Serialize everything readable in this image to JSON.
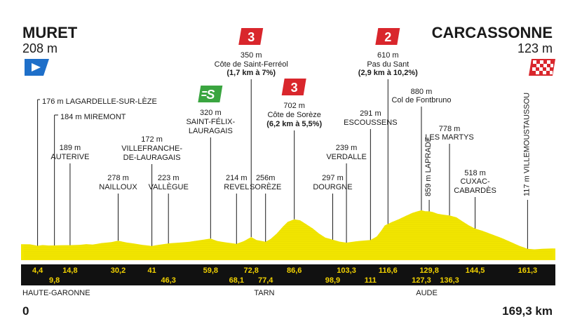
{
  "start": {
    "name": "MURET",
    "alt": "208 m",
    "km_label": "0"
  },
  "finish": {
    "name": "CARCASSONNE",
    "alt": "123 m",
    "km_label": "169,3 km"
  },
  "total_km": 169.3,
  "regions": [
    {
      "name": "HAUTE-GARONNE",
      "km": 0
    },
    {
      "name": "TARN",
      "km": 77
    },
    {
      "name": "AUDE",
      "km": 129
    }
  ],
  "colors": {
    "profile": "#f2e600",
    "axis_bar": "#111111",
    "km_text": "#f2d200",
    "climb_red": "#d9262c",
    "sprint_green": "#3aa540",
    "start_blue": "#1e6fc9"
  },
  "markers": [
    {
      "km": 4.4,
      "km_label": "4,4",
      "row": "top",
      "label": [
        "176 m LAGARDELLE-SUR-LÈZE"
      ]
    },
    {
      "km": 9.8,
      "km_label": "9,8",
      "row": "bottom",
      "label": [
        "184 m MIREMONT"
      ]
    },
    {
      "km": 14.8,
      "km_label": "14,8",
      "row": "top",
      "label": [
        "189 m",
        "AUTERIVE"
      ]
    },
    {
      "km": 30.2,
      "km_label": "30,2",
      "row": "top",
      "label": [
        "278 m",
        "NAILLOUX"
      ]
    },
    {
      "km": 41,
      "km_label": "41",
      "row": "top",
      "label": [
        "172 m",
        "VILLEFRANCHE-",
        "DE-LAURAGAIS"
      ]
    },
    {
      "km": 46.3,
      "km_label": "46,3",
      "row": "bottom",
      "label": [
        "223 m",
        "VALLÈGUE"
      ]
    },
    {
      "km": 59.8,
      "km_label": "59,8",
      "row": "top",
      "label": [
        "320 m",
        "SAINT-FÉLIX-",
        "LAURAGAIS"
      ],
      "icon": "sprint"
    },
    {
      "km": 68.1,
      "km_label": "68,1",
      "row": "bottom",
      "label": [
        "214 m",
        "REVEL"
      ]
    },
    {
      "km": 72.8,
      "km_label": "72,8",
      "row": "top",
      "label": [
        "350 m",
        "Côte de Saint-Ferréol",
        "(1,7 km à 7%)"
      ],
      "icon": "cat3"
    },
    {
      "km": 77.4,
      "km_label": "77,4",
      "row": "bottom",
      "label": [
        "256m",
        "SORÈZE"
      ]
    },
    {
      "km": 86.6,
      "km_label": "86,6",
      "row": "top",
      "label": [
        "702 m",
        "Côte de Sorèze",
        "(6,2 km à 5,5%)"
      ],
      "icon": "cat3"
    },
    {
      "km": 98.9,
      "km_label": "98,9",
      "row": "bottom",
      "label": [
        "297 m",
        "DOURGNE"
      ]
    },
    {
      "km": 103.3,
      "km_label": "103,3",
      "row": "top",
      "label": [
        "239 m",
        "VERDALLE"
      ]
    },
    {
      "km": 111,
      "km_label": "111",
      "row": "bottom",
      "label": [
        "291 m",
        "ESCOUSSENS"
      ]
    },
    {
      "km": 116.6,
      "km_label": "116,6",
      "row": "top",
      "label": [
        "610 m",
        "Pas du Sant",
        "(2,9 km à 10,2%)"
      ],
      "icon": "cat2"
    },
    {
      "km": 127.3,
      "km_label": "127,3",
      "row": "bottom",
      "label": [
        "880 m",
        "Col de Fontbruno"
      ]
    },
    {
      "km": 129.8,
      "km_label": "129,8",
      "row": "top",
      "label": [
        "859 m LAPRADE"
      ],
      "vertical": true
    },
    {
      "km": 136.3,
      "km_label": "136,3",
      "row": "bottom",
      "label": [
        "778 m",
        "LES MARTYS"
      ]
    },
    {
      "km": 144.5,
      "km_label": "144,5",
      "row": "top",
      "label": [
        "518 m",
        "CUXAC-",
        "CABARDÈS"
      ]
    },
    {
      "km": 161.3,
      "km_label": "161,3",
      "row": "top",
      "label": [
        "117 m VILLEMOUSTAUSSOU"
      ],
      "vertical": true
    }
  ],
  "icons": {
    "cat3": "3",
    "cat2": "2",
    "sprint": "S"
  },
  "profile": [
    [
      0,
      208
    ],
    [
      2,
      205
    ],
    [
      4.4,
      176
    ],
    [
      6,
      190
    ],
    [
      8,
      182
    ],
    [
      9.8,
      184
    ],
    [
      12,
      186
    ],
    [
      14.8,
      189
    ],
    [
      18,
      196
    ],
    [
      20,
      210
    ],
    [
      22,
      200
    ],
    [
      25,
      230
    ],
    [
      28,
      250
    ],
    [
      30.2,
      278
    ],
    [
      33,
      240
    ],
    [
      36,
      215
    ],
    [
      38,
      195
    ],
    [
      41,
      172
    ],
    [
      43,
      195
    ],
    [
      46.3,
      223
    ],
    [
      50,
      240
    ],
    [
      53,
      255
    ],
    [
      56,
      285
    ],
    [
      59.8,
      320
    ],
    [
      62,
      270
    ],
    [
      65,
      240
    ],
    [
      68.1,
      214
    ],
    [
      70.5,
      270
    ],
    [
      72.8,
      350
    ],
    [
      74.5,
      290
    ],
    [
      77.4,
      256
    ],
    [
      79,
      310
    ],
    [
      81,
      420
    ],
    [
      83,
      560
    ],
    [
      84.5,
      650
    ],
    [
      86.6,
      702
    ],
    [
      88.5,
      680
    ],
    [
      90.5,
      600
    ],
    [
      92.5,
      520
    ],
    [
      94.5,
      420
    ],
    [
      96.5,
      340
    ],
    [
      98.9,
      297
    ],
    [
      101,
      260
    ],
    [
      103.3,
      239
    ],
    [
      105.5,
      258
    ],
    [
      108,
      275
    ],
    [
      111,
      291
    ],
    [
      113,
      360
    ],
    [
      114.5,
      480
    ],
    [
      115.6,
      580
    ],
    [
      116.6,
      610
    ],
    [
      118,
      650
    ],
    [
      120,
      700
    ],
    [
      122,
      760
    ],
    [
      124.5,
      830
    ],
    [
      127.3,
      880
    ],
    [
      128.5,
      860
    ],
    [
      129.8,
      859
    ],
    [
      131,
      845
    ],
    [
      132.5,
      810
    ],
    [
      134.5,
      790
    ],
    [
      136.3,
      778
    ],
    [
      138.5,
      740
    ],
    [
      140.5,
      660
    ],
    [
      142.5,
      580
    ],
    [
      144.5,
      518
    ],
    [
      147,
      470
    ],
    [
      150,
      400
    ],
    [
      153,
      330
    ],
    [
      156,
      250
    ],
    [
      158.5,
      180
    ],
    [
      161.3,
      117
    ],
    [
      163.5,
      105
    ],
    [
      166,
      118
    ],
    [
      169.3,
      123
    ]
  ]
}
